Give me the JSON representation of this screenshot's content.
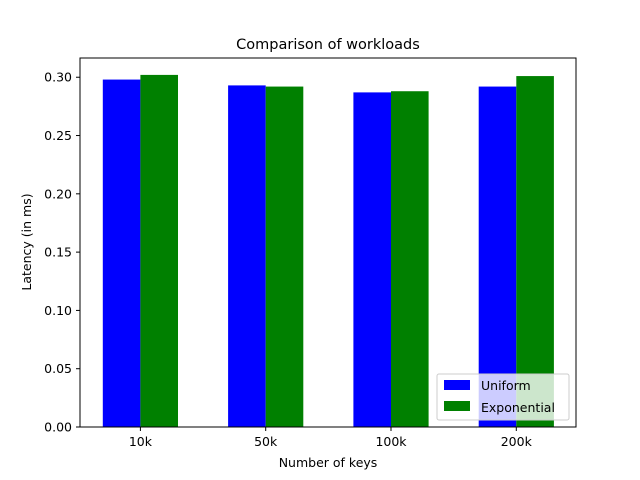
{
  "chart_data": {
    "type": "bar",
    "title": "Comparison of workloads",
    "xlabel": "Number of keys",
    "ylabel": "Latency (in ms)",
    "categories": [
      "10k",
      "50k",
      "100k",
      "200k"
    ],
    "series": [
      {
        "name": "Uniform",
        "color": "#0000ff",
        "values": [
          0.298,
          0.293,
          0.287,
          0.292
        ]
      },
      {
        "name": "Exponential",
        "color": "#008000",
        "values": [
          0.302,
          0.292,
          0.288,
          0.301
        ]
      }
    ],
    "ylim": [
      0,
      0.3165
    ],
    "yticks": [
      "0.00",
      "0.05",
      "0.10",
      "0.15",
      "0.20",
      "0.25",
      "0.30"
    ],
    "grid": false,
    "legend_position": "bottom-right"
  }
}
